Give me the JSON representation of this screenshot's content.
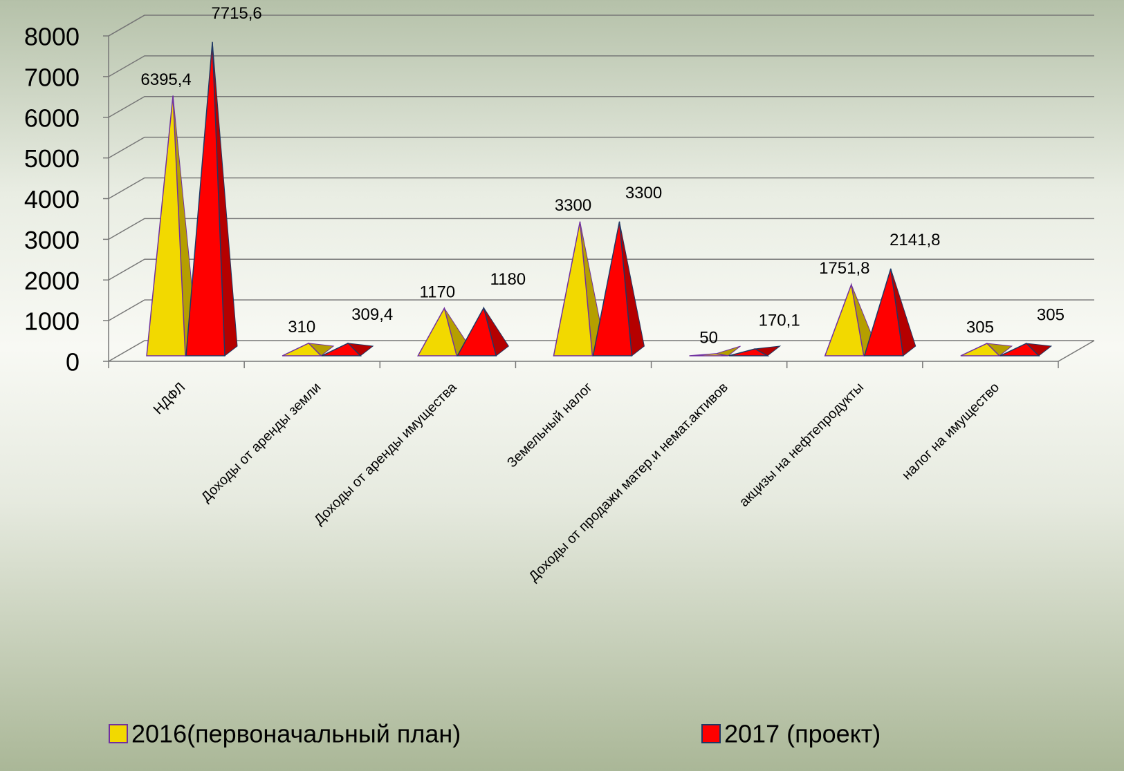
{
  "chart_data": {
    "type": "bar",
    "categories": [
      "НДФЛ",
      "Доходы от аренды земли",
      "Доходы от аренды имущества",
      "Земельный налог",
      "Доходы от продажи матер.и немат.активов",
      "акцизы на нефтепродукты",
      "налог на имущество"
    ],
    "series": [
      {
        "name": "2016(первоначальный план)",
        "color": "#f2d900",
        "values": [
          6395.4,
          310,
          1170,
          3300,
          50,
          1751.8,
          305
        ],
        "value_labels": [
          "6395,4",
          "310",
          "1170",
          "3300",
          "50",
          "1751,8",
          "305"
        ]
      },
      {
        "name": "2017 (проект)",
        "color": "#ff0000",
        "values": [
          7715.6,
          309.4,
          1180,
          3300,
          170.1,
          2141.8,
          305
        ],
        "value_labels": [
          "7715,6",
          "309,4",
          "1180",
          "3300",
          "170,1",
          "2141,8",
          "305"
        ]
      }
    ],
    "ylim": [
      0,
      8000
    ],
    "yticks": [
      0,
      1000,
      2000,
      3000,
      4000,
      5000,
      6000,
      7000,
      8000
    ],
    "grid": true,
    "legend": "bottom"
  }
}
